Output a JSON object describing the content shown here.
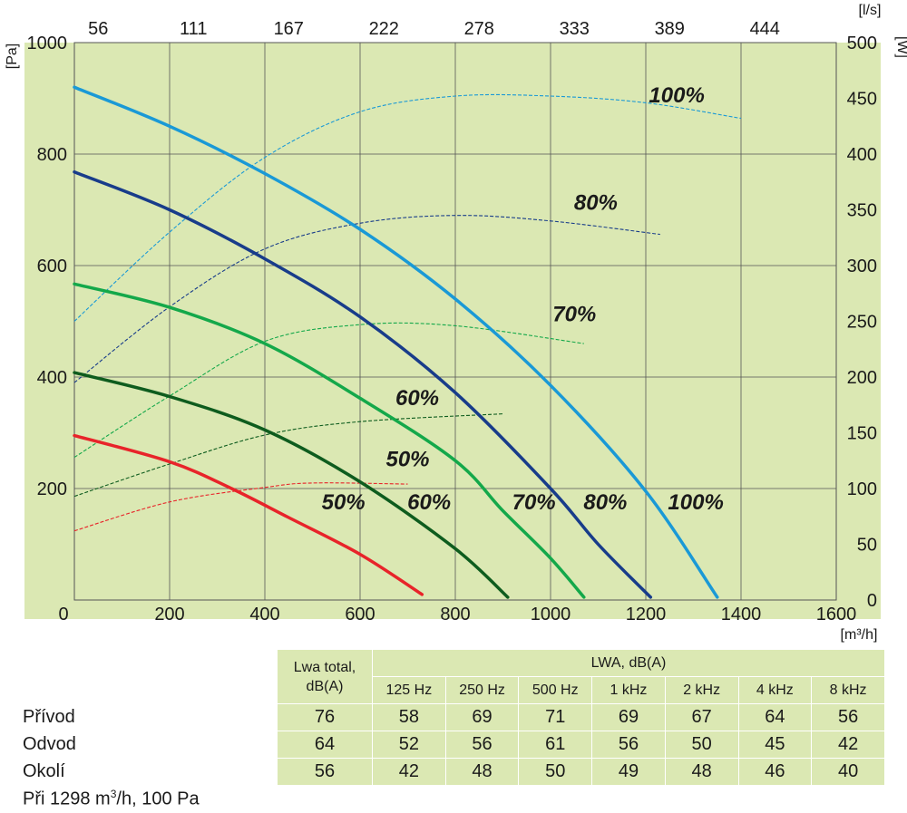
{
  "chart_data": {
    "type": "line",
    "x_axis": {
      "label": "[m3/h]",
      "range": [
        0,
        1600
      ],
      "ticks": [
        "0",
        "200",
        "400",
        "600",
        "800",
        "1000",
        "1200",
        "1400",
        "1600"
      ]
    },
    "x2_axis": {
      "label": "[l/s]",
      "ticks": [
        "56",
        "111",
        "167",
        "222",
        "278",
        "333",
        "389",
        "444"
      ]
    },
    "y_axis": {
      "label": "[Pa]",
      "range": [
        0,
        1000
      ],
      "ticks": [
        "0",
        "200",
        "400",
        "600",
        "800",
        "1000"
      ]
    },
    "y2_axis": {
      "label": "[W]",
      "range": [
        0,
        500
      ],
      "ticks": [
        "0",
        "50",
        "100",
        "150",
        "200",
        "250",
        "300",
        "350",
        "400",
        "450",
        "500"
      ]
    },
    "grid": true,
    "pressure_curves": [
      {
        "label": "50%",
        "color": "#e8242a",
        "points": [
          [
            0,
            295
          ],
          [
            200,
            248
          ],
          [
            330,
            200
          ],
          [
            450,
            148
          ],
          [
            600,
            82
          ],
          [
            730,
            10
          ]
        ]
      },
      {
        "label": "60%",
        "color": "#0e5c1e",
        "points": [
          [
            0,
            408
          ],
          [
            200,
            365
          ],
          [
            400,
            305
          ],
          [
            600,
            212
          ],
          [
            800,
            92
          ],
          [
            910,
            5
          ]
        ]
      },
      {
        "label": "70%",
        "color": "#14a84a",
        "points": [
          [
            0,
            567
          ],
          [
            200,
            525
          ],
          [
            400,
            460
          ],
          [
            600,
            362
          ],
          [
            800,
            250
          ],
          [
            900,
            160
          ],
          [
            1000,
            75
          ],
          [
            1070,
            5
          ]
        ]
      },
      {
        "label": "80%",
        "color": "#183c8a",
        "points": [
          [
            0,
            768
          ],
          [
            200,
            700
          ],
          [
            400,
            612
          ],
          [
            600,
            508
          ],
          [
            800,
            372
          ],
          [
            1000,
            200
          ],
          [
            1100,
            100
          ],
          [
            1210,
            5
          ]
        ]
      },
      {
        "label": "100%",
        "color": "#1a99d6",
        "points": [
          [
            0,
            920
          ],
          [
            200,
            850
          ],
          [
            400,
            765
          ],
          [
            600,
            665
          ],
          [
            800,
            540
          ],
          [
            1000,
            385
          ],
          [
            1200,
            195
          ],
          [
            1350,
            5
          ]
        ]
      }
    ],
    "power_curves": [
      {
        "label": "50%",
        "color": "#e8242a",
        "points": [
          [
            0,
            62
          ],
          [
            200,
            88
          ],
          [
            400,
            101
          ],
          [
            500,
            105
          ],
          [
            700,
            104
          ]
        ]
      },
      {
        "label": "60%",
        "color": "#0e5c1e",
        "points": [
          [
            0,
            93
          ],
          [
            200,
            122
          ],
          [
            400,
            148
          ],
          [
            600,
            160
          ],
          [
            900,
            167
          ]
        ]
      },
      {
        "label": "70%",
        "color": "#14a84a",
        "points": [
          [
            0,
            128
          ],
          [
            200,
            183
          ],
          [
            400,
            232
          ],
          [
            600,
            247
          ],
          [
            800,
            246
          ],
          [
            1070,
            230
          ]
        ]
      },
      {
        "label": "80%",
        "color": "#183c8a",
        "points": [
          [
            0,
            195
          ],
          [
            200,
            263
          ],
          [
            400,
            315
          ],
          [
            600,
            338
          ],
          [
            800,
            345
          ],
          [
            1000,
            340
          ],
          [
            1230,
            328
          ]
        ]
      },
      {
        "label": "100%",
        "color": "#1a99d6",
        "points": [
          [
            0,
            250
          ],
          [
            200,
            330
          ],
          [
            400,
            397
          ],
          [
            600,
            438
          ],
          [
            800,
            452
          ],
          [
            1000,
            452
          ],
          [
            1200,
            446
          ],
          [
            1400,
            432
          ]
        ]
      }
    ],
    "curve_labels": [
      {
        "text": "50%",
        "x": 565,
        "y": 163
      },
      {
        "text": "60%",
        "x": 745,
        "y": 163
      },
      {
        "text": "70%",
        "x": 965,
        "y": 163
      },
      {
        "text": "80%",
        "x": 1115,
        "y": 163
      },
      {
        "text": "100%",
        "x": 1305,
        "y": 163
      },
      {
        "text": "50%",
        "x": 700,
        "y": 240
      },
      {
        "text": "60%",
        "x": 720,
        "y": 350
      },
      {
        "text": "70%",
        "x": 1050,
        "y": 500
      },
      {
        "text": "80%",
        "x": 1095,
        "y": 700
      },
      {
        "text": "100%",
        "x": 1265,
        "y": 893
      }
    ]
  },
  "table": {
    "header": {
      "lwa_total": "Lwa total,",
      "lwa_total_unit": "dB(A)",
      "lwa_band": "LWA, dB(A)",
      "bands": [
        "125 Hz",
        "250 Hz",
        "500 Hz",
        "1 kHz",
        "2 kHz",
        "4 kHz",
        "8 kHz"
      ]
    },
    "rows": [
      {
        "label": "Přívod",
        "total": "76",
        "values": [
          "58",
          "69",
          "71",
          "69",
          "67",
          "64",
          "56"
        ]
      },
      {
        "label": "Odvod",
        "total": "64",
        "values": [
          "52",
          "56",
          "61",
          "56",
          "50",
          "45",
          "42"
        ]
      },
      {
        "label": "Okolí",
        "total": "56",
        "values": [
          "42",
          "48",
          "50",
          "49",
          "48",
          "46",
          "40"
        ]
      }
    ],
    "note_prefix": "Při 1298 m",
    "note_sup": "3",
    "note_suffix": "/h, 100 Pa"
  },
  "colors": {
    "plot_bg": "#dbe8b3",
    "grid": "#555555",
    "table_bg": "#dbe8b3"
  }
}
